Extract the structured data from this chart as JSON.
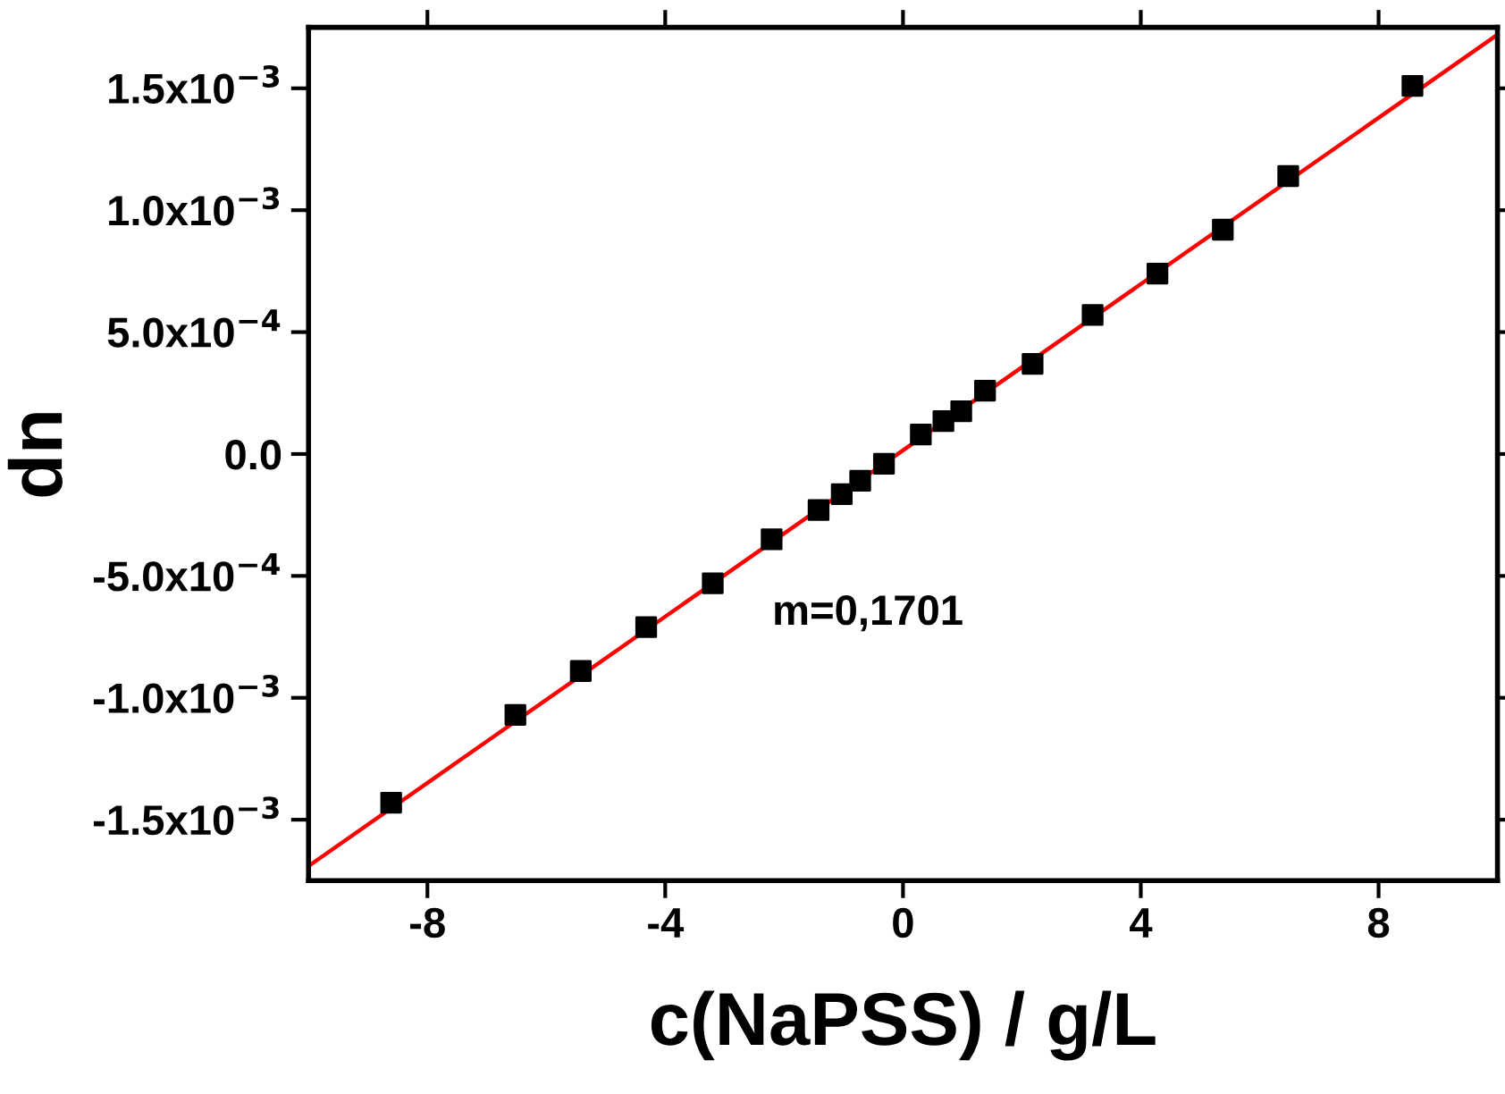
{
  "chart_data": {
    "type": "scatter",
    "xlabel": "c(NaPSS) / g/L",
    "ylabel": "dn",
    "xlim": [
      -10,
      10
    ],
    "xticks": [
      -8,
      -4,
      0,
      4,
      8
    ],
    "ylim": [
      -0.00175,
      0.00175
    ],
    "yticks": [
      {
        "value": -0.0015,
        "label": "-1.5x10$^{−3}$"
      },
      {
        "value": -0.001,
        "label": "-1.0x10$^{−3}$"
      },
      {
        "value": -0.0005,
        "label": "-5.0x10$^{−4}$"
      },
      {
        "value": 0,
        "label": "0.0"
      },
      {
        "value": 0.0005,
        "label": "5.0x10$^{−4}$"
      },
      {
        "value": 0.001,
        "label": "1.0x10$^{−3}$"
      },
      {
        "value": 0.0015,
        "label": "1.5x10$^{−3}$"
      }
    ],
    "grid": false,
    "legend": false,
    "annotations": [
      "m=0,1701"
    ],
    "series": [
      {
        "marker": "square",
        "color": "#000000",
        "x": [
          -8.61,
          -6.52,
          -5.42,
          -4.32,
          -3.2,
          -2.21,
          -1.42,
          -1.03,
          -0.72,
          -0.32,
          0.3,
          0.68,
          0.98,
          1.38,
          2.18,
          3.19,
          4.28,
          5.38,
          6.48,
          8.57
        ],
        "values": [
          -0.00143,
          -0.00107,
          -0.00089,
          -0.00071,
          -0.00053,
          -0.00035,
          -0.00023,
          -0.000165,
          -0.00011,
          -4e-05,
          8e-05,
          0.000135,
          0.000175,
          0.00026,
          0.00037,
          0.00057,
          0.00074,
          0.00092,
          0.00114,
          0.00151
        ]
      },
      {
        "type": "line",
        "color": "#ff0000",
        "line_style": "solid",
        "x": [
          -10,
          10
        ],
        "values": [
          -0.00169,
          0.00172
        ]
      }
    ]
  }
}
